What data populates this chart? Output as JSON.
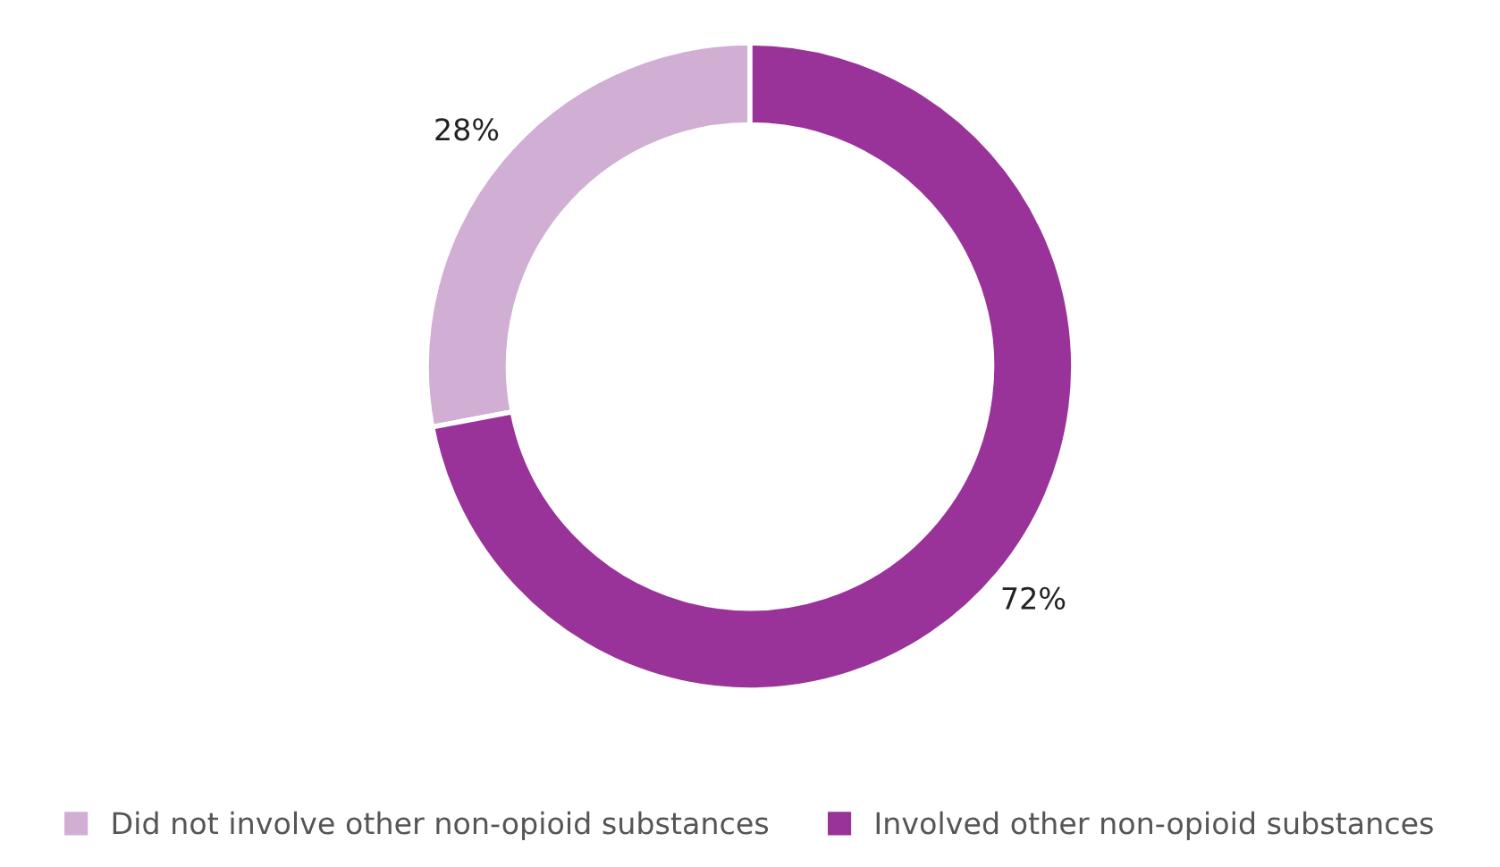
{
  "chart_data": {
    "type": "donut",
    "categories": [
      "Did not involve other non-opioid substances",
      "Involved other non-opioid substances"
    ],
    "values": [
      28,
      72
    ],
    "colors": [
      "#d1aed4",
      "#993399"
    ],
    "value_labels": [
      "28%",
      "72%"
    ],
    "legend": "bottom"
  }
}
